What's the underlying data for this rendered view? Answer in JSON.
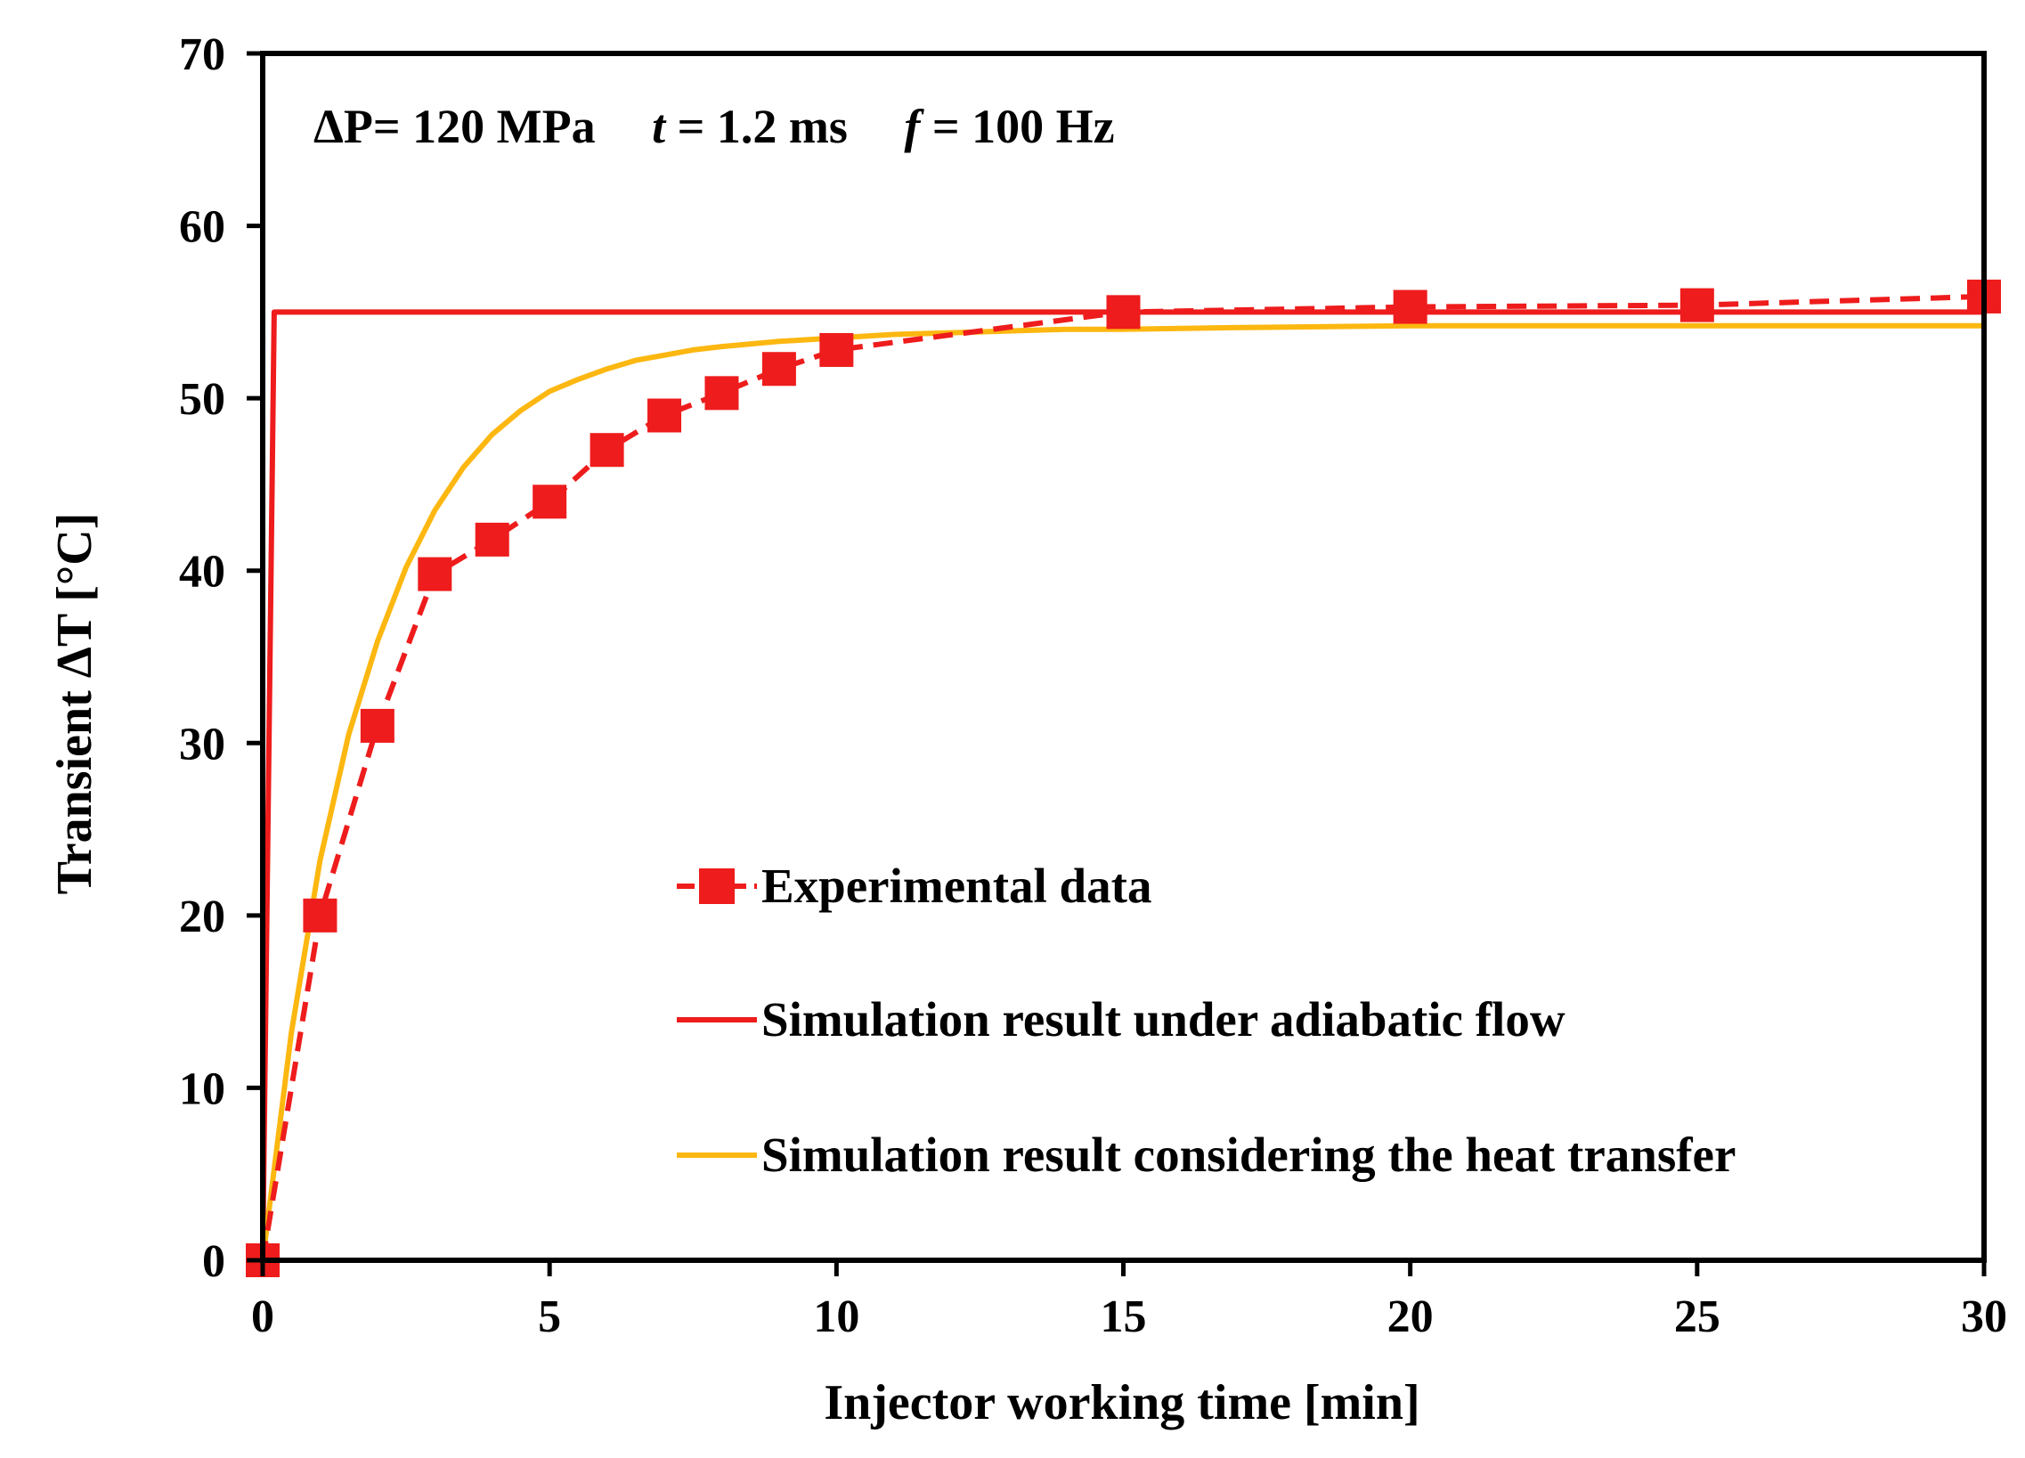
{
  "chart_data": {
    "type": "line",
    "title": "",
    "annotation": {
      "dp_label": "ΔP= 120 MPa",
      "t_symbol": "t",
      "t_value": "= 1.2 ms",
      "f_symbol": "f",
      "f_value": "= 100 Hz"
    },
    "xlabel": "Injector working time [min]",
    "ylabel": "Transient ΔT [°C]",
    "xlim": [
      0,
      30
    ],
    "ylim": [
      0,
      70
    ],
    "xticks": [
      0,
      5,
      10,
      15,
      20,
      25,
      30
    ],
    "yticks": [
      0,
      10,
      20,
      30,
      40,
      50,
      60,
      70
    ],
    "legend_position": "lower-right",
    "series": [
      {
        "name": "Experimental data",
        "style": "dashed-square-markers",
        "color": "#ee1c1c",
        "x": [
          0,
          1,
          2,
          3,
          4,
          5,
          6,
          7,
          8,
          9,
          10,
          15,
          20,
          25,
          30
        ],
        "y": [
          0,
          20,
          31,
          39.8,
          41.8,
          44,
          47,
          49,
          50.3,
          51.7,
          52.8,
          55,
          55.3,
          55.4,
          55.9
        ]
      },
      {
        "name": "Simulation result under adiabatic flow",
        "style": "solid",
        "color": "#ee1c1c",
        "x": [
          0,
          0.2,
          30
        ],
        "y": [
          0,
          55,
          55
        ]
      },
      {
        "name": "Simulation result considering the heat transfer",
        "style": "solid",
        "color": "#fcb710",
        "x": [
          0,
          0.5,
          1,
          1.5,
          2,
          2.5,
          3,
          3.5,
          4,
          4.5,
          5,
          5.5,
          6,
          6.5,
          7,
          7.5,
          8,
          9,
          10,
          11,
          12,
          13,
          14,
          15,
          17,
          20,
          25,
          30
        ],
        "y": [
          0,
          13.2,
          23.2,
          30.5,
          35.9,
          40.2,
          43.5,
          46,
          47.9,
          49.3,
          50.4,
          51.1,
          51.7,
          52.2,
          52.5,
          52.8,
          53,
          53.3,
          53.5,
          53.7,
          53.8,
          53.9,
          54,
          54,
          54.1,
          54.2,
          54.2,
          54.2
        ]
      }
    ]
  }
}
